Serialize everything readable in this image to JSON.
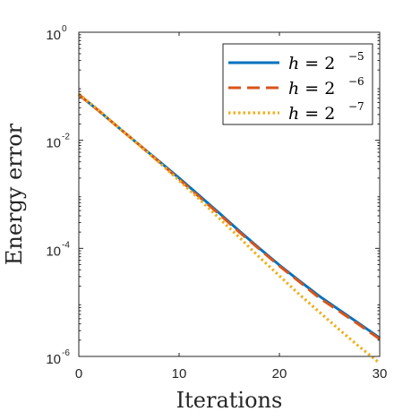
{
  "chart_data": {
    "type": "line",
    "title": "",
    "xlabel": "Iterations",
    "ylabel": "Energy error",
    "xlim": [
      0,
      30
    ],
    "ylim": [
      1e-06,
      1
    ],
    "yscale": "log",
    "grid": false,
    "legend_position": "top-right",
    "x_ticks": [
      0,
      10,
      20,
      30
    ],
    "x_tick_labels": [
      "0",
      "10",
      "20",
      "30"
    ],
    "y_ticks": [
      {
        "value": 1,
        "base": "10",
        "exp": "0"
      },
      {
        "value": 0.01,
        "base": "10",
        "exp": "-2"
      },
      {
        "value": 0.0001,
        "base": "10",
        "exp": "-4"
      },
      {
        "value": 1e-06,
        "base": "10",
        "exp": "-6"
      }
    ],
    "series": [
      {
        "name": "h = 2^-5",
        "legend_lhs": "h = 2",
        "legend_exp": "−5",
        "color": "#0072BD",
        "dash": "solid",
        "x": [
          0,
          2,
          4,
          6,
          8,
          10,
          12,
          14,
          16,
          18,
          20,
          22,
          24,
          26,
          28,
          30
        ],
        "y": [
          0.07,
          0.035,
          0.017,
          0.0083,
          0.0041,
          0.002,
          0.00095,
          0.00045,
          0.00021,
          0.0001,
          4.9e-05,
          2.5e-05,
          1.3e-05,
          7.2e-06,
          4e-06,
          2.2e-06
        ]
      },
      {
        "name": "h = 2^-6",
        "legend_lhs": "h = 2",
        "legend_exp": "−6",
        "color": "#D95319",
        "dash": "dashed",
        "x": [
          0,
          2,
          4,
          6,
          8,
          10,
          12,
          14,
          16,
          18,
          20,
          22,
          24,
          26,
          28,
          30
        ],
        "y": [
          0.07,
          0.035,
          0.017,
          0.0083,
          0.004,
          0.0019,
          0.0009,
          0.00043,
          0.0002,
          9.7e-05,
          4.7e-05,
          2.4e-05,
          1.2e-05,
          6.8e-06,
          3.8e-06,
          2.1e-06
        ]
      },
      {
        "name": "h = 2^-7",
        "legend_lhs": "h = 2",
        "legend_exp": "−7",
        "color": "#EDB120",
        "dash": "dotted",
        "x": [
          0,
          2,
          4,
          6,
          8,
          10,
          12,
          14,
          16,
          18,
          20,
          22,
          24,
          26,
          28,
          30
        ],
        "y": [
          0.072,
          0.036,
          0.017,
          0.0082,
          0.0039,
          0.0018,
          0.00082,
          0.00036,
          0.00016,
          6.9e-05,
          3.1e-05,
          1.4e-05,
          6.6e-06,
          3.1e-06,
          1.5e-06,
          7.5e-07
        ]
      }
    ]
  }
}
